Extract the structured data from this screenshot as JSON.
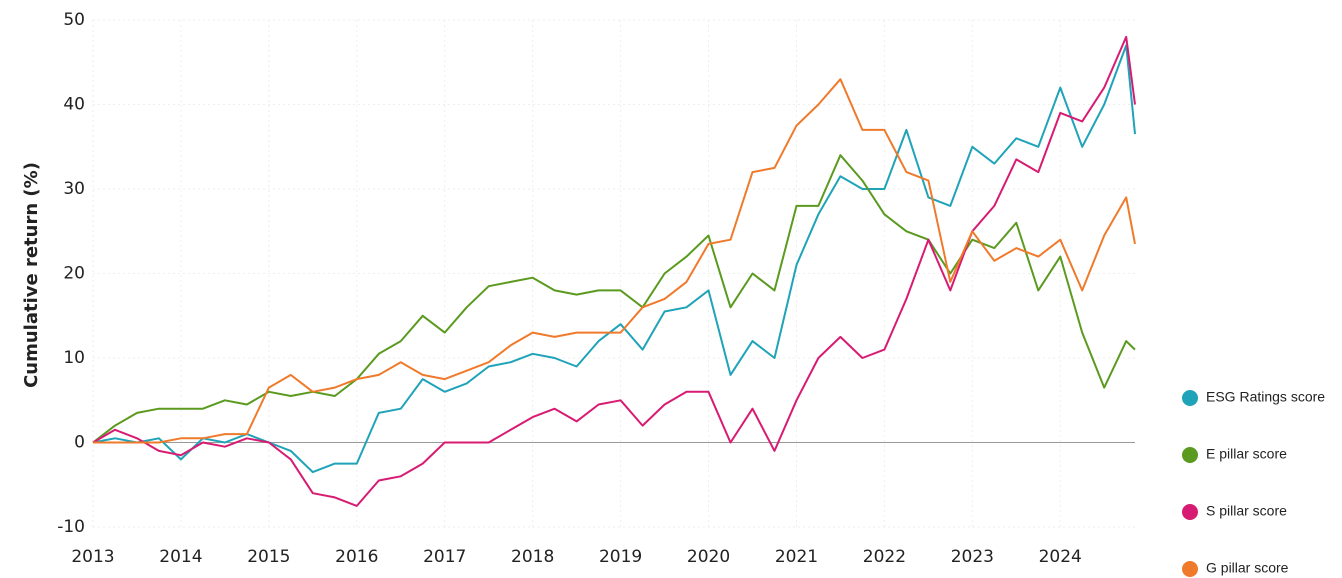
{
  "chart_data": {
    "type": "line",
    "y_label": "Cumulative return (%)",
    "x": [
      2013,
      2013.25,
      2013.5,
      2013.75,
      2014,
      2014.25,
      2014.5,
      2014.75,
      2015,
      2015.25,
      2015.5,
      2015.75,
      2016,
      2016.25,
      2016.5,
      2016.75,
      2017,
      2017.25,
      2017.5,
      2017.75,
      2018,
      2018.25,
      2018.5,
      2018.75,
      2019,
      2019.25,
      2019.5,
      2019.75,
      2020,
      2020.25,
      2020.5,
      2020.75,
      2021,
      2021.25,
      2021.5,
      2021.75,
      2022,
      2022.25,
      2022.5,
      2022.75,
      2023,
      2023.25,
      2023.5,
      2023.75,
      2024,
      2024.25,
      2024.5,
      2024.75,
      2024.85
    ],
    "series": [
      {
        "name": "ESG Ratings score",
        "color": "#1fa3b8",
        "values": [
          0,
          0.5,
          0,
          0.5,
          -2,
          0.5,
          0,
          1,
          0,
          -1,
          -3.5,
          -2.5,
          -2.5,
          3.5,
          4,
          7.5,
          6,
          7,
          9,
          9.5,
          10.5,
          10,
          9,
          12,
          14,
          11,
          15.5,
          16,
          18,
          8,
          12,
          10,
          21,
          27,
          31.5,
          30,
          30,
          37,
          29,
          28,
          35,
          33,
          36,
          35,
          42,
          35,
          40,
          47,
          36.5
        ]
      },
      {
        "name": "E pillar score",
        "color": "#5a9a1f",
        "values": [
          0,
          2,
          3.5,
          4,
          4,
          4,
          5,
          4.5,
          6,
          5.5,
          6,
          5.5,
          7.5,
          10.5,
          12,
          15,
          13,
          16,
          18.5,
          19,
          19.5,
          18,
          17.5,
          18,
          18,
          16,
          20,
          22,
          24.5,
          16,
          20,
          18,
          28,
          28,
          34,
          31,
          27,
          25,
          24,
          20,
          24,
          23,
          26,
          18,
          22,
          13,
          6.5,
          12,
          11
        ]
      },
      {
        "name": "S pillar score",
        "color": "#d81b72",
        "values": [
          0,
          1.5,
          0.5,
          -1,
          -1.5,
          0,
          -0.5,
          0.5,
          0,
          -2,
          -6,
          -6.5,
          -7.5,
          -4.5,
          -4,
          -2.5,
          0,
          0,
          0,
          1.5,
          3,
          4,
          2.5,
          4.5,
          5,
          2,
          4.5,
          6,
          6,
          0,
          4,
          -1,
          5,
          10,
          12.5,
          10,
          11,
          17,
          24,
          18,
          25,
          28,
          33.5,
          32,
          39,
          38,
          42,
          48,
          40
        ]
      },
      {
        "name": "G pillar score",
        "color": "#f07a2b",
        "values": [
          0,
          0,
          0,
          0,
          0.5,
          0.5,
          1,
          1,
          6.5,
          8,
          6,
          6.5,
          7.5,
          8,
          9.5,
          8,
          7.5,
          8.5,
          9.5,
          11.5,
          13,
          12.5,
          13,
          13,
          13,
          16,
          17,
          19,
          23.5,
          24,
          32,
          32.5,
          37.5,
          40,
          43,
          37,
          37,
          32,
          31,
          19,
          25,
          21.5,
          23,
          22,
          24,
          18,
          24.5,
          29,
          23.5
        ]
      }
    ],
    "xlim": [
      2013,
      2024.85
    ],
    "xticks": [
      2013,
      2014,
      2015,
      2016,
      2017,
      2018,
      2019,
      2020,
      2021,
      2022,
      2023,
      2024
    ],
    "ylim": [
      -10,
      50
    ],
    "yticks": [
      -10,
      0,
      10,
      20,
      30,
      40,
      50
    ],
    "grid": true,
    "legend": "right"
  }
}
